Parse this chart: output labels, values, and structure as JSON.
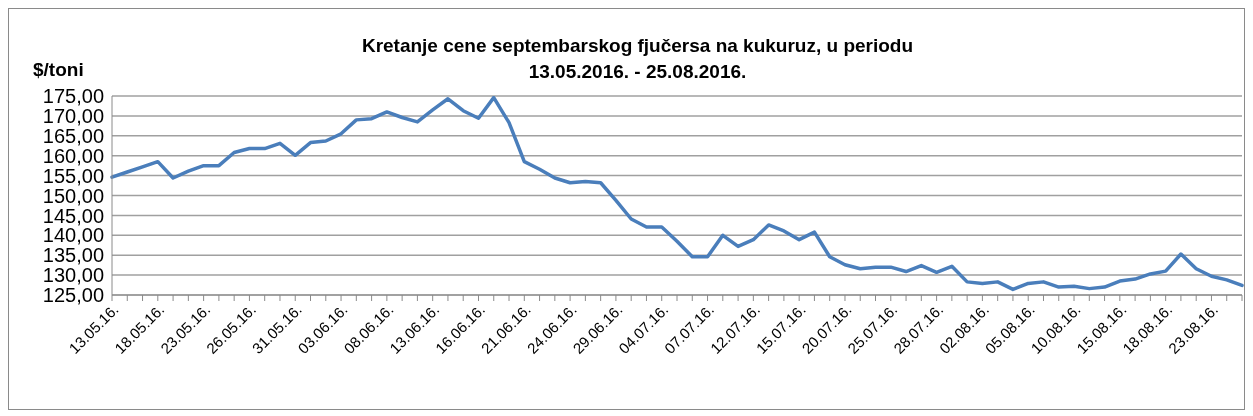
{
  "chart_data": {
    "type": "line",
    "title": "Kretanje cene septembarskog fjučersa na kukuruz, u periodu\n13.05.2016. - 25.08.2016.",
    "ylabel": "$/toni",
    "categories": [
      "13.05.16.",
      null,
      null,
      "18.05.16.",
      null,
      null,
      "23.05.16.",
      null,
      null,
      "26.05.16.",
      null,
      null,
      "31.05.16.",
      null,
      null,
      "03.06.16.",
      null,
      null,
      "08.06.16.",
      null,
      null,
      "13.06.16.",
      null,
      null,
      "16.06.16.",
      null,
      null,
      "21.06.16.",
      null,
      null,
      "24.06.16.",
      null,
      null,
      "29.06.16.",
      null,
      null,
      "04.07.16.",
      null,
      null,
      "07.07.16.",
      null,
      null,
      "12.07.16.",
      null,
      null,
      "15.07.16.",
      null,
      null,
      "20.07.16.",
      null,
      null,
      "25.07.16.",
      null,
      null,
      "28.07.16.",
      null,
      null,
      "02.08.16.",
      null,
      null,
      "05.08.16.",
      null,
      null,
      "10.08.16.",
      null,
      null,
      "15.08.16.",
      null,
      null,
      "18.08.16.",
      null,
      null,
      "23.08.16.",
      null,
      null
    ],
    "series": [
      {
        "color": "#4a7ebb",
        "values": [
          154.6,
          155.9,
          157.2,
          158.5,
          154.4,
          156.1,
          157.5,
          157.5,
          160.8,
          161.8,
          161.8,
          163.1,
          160.1,
          163.3,
          163.7,
          165.5,
          169.0,
          169.3,
          171.0,
          169.6,
          168.5,
          171.5,
          174.3,
          171.3,
          169.4,
          174.6,
          168.3,
          158.5,
          156.6,
          154.4,
          153.2,
          153.5,
          153.2,
          148.8,
          144.1,
          142.1,
          142.1,
          138.5,
          134.6,
          134.6,
          140.0,
          137.2,
          138.9,
          142.6,
          141.1,
          138.9,
          140.8,
          134.6,
          132.6,
          131.6,
          132.0,
          132.0,
          130.9,
          132.4,
          130.7,
          132.2,
          128.3,
          127.9,
          128.3,
          126.4,
          127.9,
          128.3,
          127.0,
          127.2,
          126.6,
          127.0,
          128.5,
          129.0,
          130.3,
          131.0,
          135.3,
          131.6,
          129.7,
          128.8,
          127.4
        ]
      }
    ],
    "ylim": [
      125,
      175
    ],
    "yticks": [
      {
        "value": 125,
        "label": "125,00"
      },
      {
        "value": 130,
        "label": "130,00"
      },
      {
        "value": 135,
        "label": "135,00"
      },
      {
        "value": 140,
        "label": "140,00"
      },
      {
        "value": 145,
        "label": "145,00"
      },
      {
        "value": 150,
        "label": "150,00"
      },
      {
        "value": 155,
        "label": "155,00"
      },
      {
        "value": 160,
        "label": "160,00"
      },
      {
        "value": 165,
        "label": "165,00"
      },
      {
        "value": 170,
        "label": "170,00"
      },
      {
        "value": 175,
        "label": "175,00"
      }
    ],
    "grid": "y",
    "legend": false,
    "line_style": "solid"
  }
}
